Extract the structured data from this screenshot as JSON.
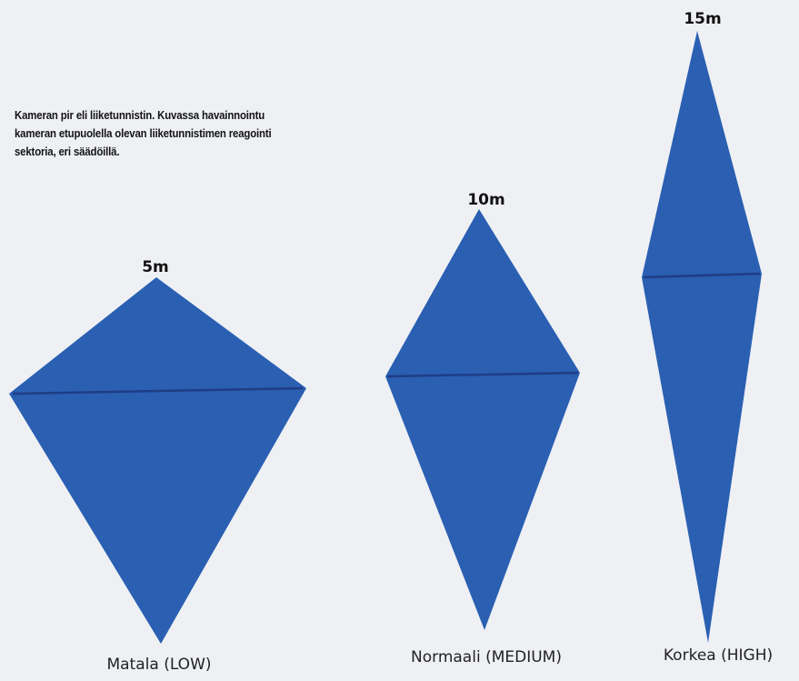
{
  "description": "Kameran pir eli liiketunnistin. Kuvassa havainnointu kameran etupuolella olevan liiketunnistimen reagointi sektoria, eri säädöillä.",
  "colors": {
    "background": "#eef0f4",
    "sector_fill": "#2a5fb2",
    "sector_divider": "#1f3d86"
  },
  "sectors": [
    {
      "range": "5m",
      "mode": "Matala (LOW)"
    },
    {
      "range": "10m",
      "mode": "Normaali (MEDIUM)"
    },
    {
      "range": "15m",
      "mode": "Korkea (HIGH)"
    }
  ]
}
